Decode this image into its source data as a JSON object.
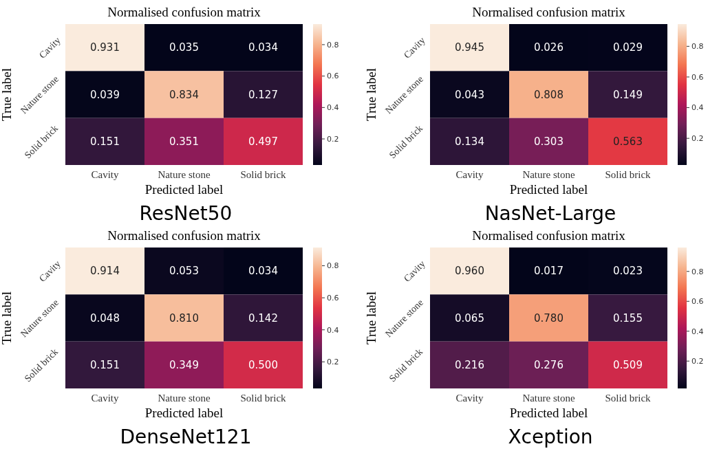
{
  "chart_data": [
    {
      "type": "heatmap",
      "title": "Normalised confusion matrix",
      "xlabel": "Predicted label",
      "ylabel": "True label",
      "categories": [
        "Cavity",
        "Nature stone",
        "Solid brick"
      ],
      "y_categories": [
        "Cavity",
        "Nature stone",
        "Solid brick"
      ],
      "cells": [
        [
          0.931,
          0.035,
          0.034
        ],
        [
          0.039,
          0.834,
          0.127
        ],
        [
          0.151,
          0.351,
          0.497
        ]
      ],
      "cell_labels": [
        [
          "0.931",
          "0.035",
          "0.034"
        ],
        [
          "0.039",
          "0.834",
          "0.127"
        ],
        [
          "0.151",
          "0.351",
          "0.497"
        ]
      ],
      "clim": [
        0.034,
        0.931
      ],
      "cticks": [
        0.2,
        0.4,
        0.6,
        0.8
      ],
      "annotations": [
        "ResNet50"
      ]
    },
    {
      "type": "heatmap",
      "title": "Normalised confusion matrix",
      "xlabel": "Predicted label",
      "ylabel": "True label",
      "categories": [
        "Cavity",
        "Nature stone",
        "Solid brick"
      ],
      "y_categories": [
        "Cavity",
        "Nature stone",
        "Solid brick"
      ],
      "cells": [
        [
          0.945,
          0.026,
          0.029
        ],
        [
          0.043,
          0.808,
          0.149
        ],
        [
          0.134,
          0.303,
          0.563
        ]
      ],
      "cell_labels": [
        [
          "0.945",
          "0.026",
          "0.029"
        ],
        [
          "0.043",
          "0.808",
          "0.149"
        ],
        [
          "0.134",
          "0.303",
          "0.563"
        ]
      ],
      "clim": [
        0.026,
        0.945
      ],
      "cticks": [
        0.2,
        0.4,
        0.6,
        0.8
      ],
      "annotations": [
        "NasNet-Large"
      ]
    },
    {
      "type": "heatmap",
      "title": "Normalised confusion matrix",
      "xlabel": "Predicted label",
      "ylabel": "True label",
      "categories": [
        "Cavity",
        "Nature stone",
        "Solid brick"
      ],
      "y_categories": [
        "Cavity",
        "Nature stone",
        "Solid brick"
      ],
      "cells": [
        [
          0.914,
          0.053,
          0.034
        ],
        [
          0.048,
          0.81,
          0.142
        ],
        [
          0.151,
          0.349,
          0.5
        ]
      ],
      "cell_labels": [
        [
          "0.914",
          "0.053",
          "0.034"
        ],
        [
          "0.048",
          "0.810",
          "0.142"
        ],
        [
          "0.151",
          "0.349",
          "0.500"
        ]
      ],
      "clim": [
        0.034,
        0.914
      ],
      "cticks": [
        0.2,
        0.4,
        0.6,
        0.8
      ],
      "annotations": [
        "DenseNet121"
      ]
    },
    {
      "type": "heatmap",
      "title": "Normalised confusion matrix",
      "xlabel": "Predicted label",
      "ylabel": "True label",
      "categories": [
        "Cavity",
        "Nature stone",
        "Solid brick"
      ],
      "y_categories": [
        "Cavity",
        "Nature stone",
        "Solid brick"
      ],
      "cells": [
        [
          0.96,
          0.017,
          0.023
        ],
        [
          0.065,
          0.78,
          0.155
        ],
        [
          0.216,
          0.276,
          0.509
        ]
      ],
      "cell_labels": [
        [
          "0.960",
          "0.017",
          "0.023"
        ],
        [
          "0.065",
          "0.780",
          "0.155"
        ],
        [
          "0.216",
          "0.276",
          "0.509"
        ]
      ],
      "clim": [
        0.017,
        0.96
      ],
      "cticks": [
        0.2,
        0.4,
        0.6,
        0.8
      ],
      "annotations": [
        "Xception"
      ]
    }
  ]
}
